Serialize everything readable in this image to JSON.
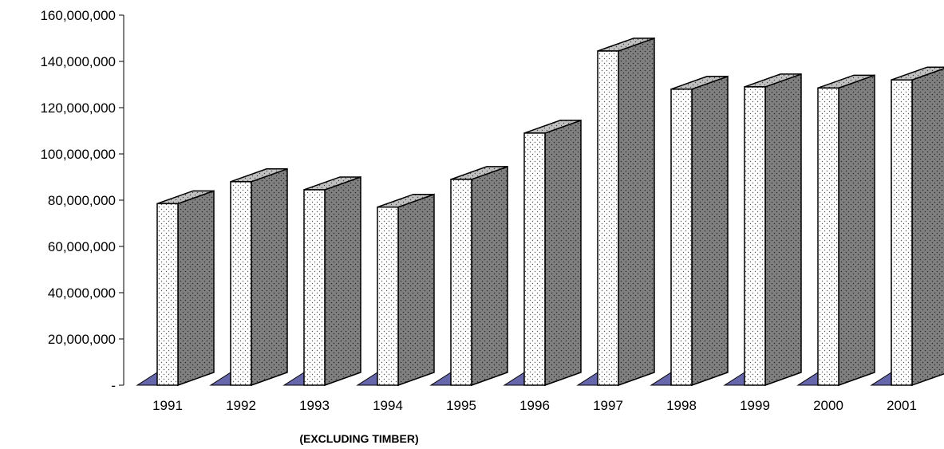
{
  "chart_data": {
    "type": "bar",
    "style": "3d-column",
    "categories": [
      "1991",
      "1992",
      "1993",
      "1994",
      "1995",
      "1996",
      "1997",
      "1998",
      "1999",
      "2000",
      "2001"
    ],
    "values": [
      78500000,
      88000000,
      84500000,
      77000000,
      89000000,
      109000000,
      144500000,
      128000000,
      129000000,
      128500000,
      132000000
    ],
    "title": "",
    "xlabel": "(EXCLUDING TIMBER)",
    "ylabel": "",
    "ylim": [
      0,
      160000000
    ],
    "yticks": [
      0,
      20000000,
      40000000,
      60000000,
      80000000,
      100000000,
      120000000,
      140000000,
      160000000
    ],
    "ytick_labels": [
      "-",
      "20,000,000",
      "40,000,000",
      "60,000,000",
      "80,000,000",
      "100,000,000",
      "120,000,000",
      "140,000,000",
      "160,000,000"
    ],
    "grid": false,
    "legend": "none",
    "colors": {
      "front_face": "#ffffff",
      "side_face": "#7f7f7f",
      "top_face": "#bfbfbf",
      "floor": "#6666aa",
      "outline": "#000000"
    }
  }
}
